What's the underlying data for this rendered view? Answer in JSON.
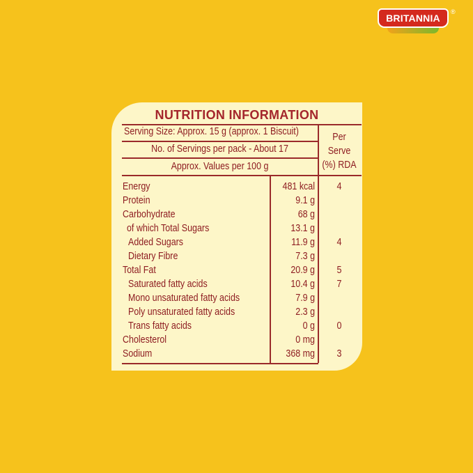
{
  "brand": {
    "name": "BRITANNIA",
    "reg": "®"
  },
  "nutrition": {
    "title": "NUTRITION INFORMATION",
    "serving_size": "Serving Size: Approx. 15 g (approx. 1 Biscuit)",
    "servings_per_pack": "No. of Servings per pack - About 17",
    "values_per": "Approx. Values per 100 g",
    "rda_header": [
      "Per",
      "Serve",
      "(%) RDA"
    ],
    "rows": [
      {
        "name": "Energy",
        "value": "481 kcal",
        "rda": "4",
        "indent": 0
      },
      {
        "name": "Protein",
        "value": "9.1 g",
        "rda": "",
        "indent": 0
      },
      {
        "name": "Carbohydrate",
        "value": "68 g",
        "rda": "",
        "indent": 0
      },
      {
        "name": "of which Total Sugars",
        "value": "13.1 g",
        "rda": "",
        "indent": 1
      },
      {
        "name": "Added Sugars",
        "value": "11.9 g",
        "rda": "4",
        "indent": 2
      },
      {
        "name": "Dietary Fibre",
        "value": "7.3 g",
        "rda": "",
        "indent": 2
      },
      {
        "name": "Total Fat",
        "value": "20.9 g",
        "rda": "5",
        "indent": 0
      },
      {
        "name": "Saturated fatty acids",
        "value": "10.4 g",
        "rda": "7",
        "indent": 2
      },
      {
        "name": "Mono unsaturated fatty acids",
        "value": "7.9 g",
        "rda": "",
        "indent": 2
      },
      {
        "name": "Poly unsaturated fatty acids",
        "value": "2.3 g",
        "rda": "",
        "indent": 2
      },
      {
        "name": "Trans fatty acids",
        "value": "0 g",
        "rda": "0",
        "indent": 2
      },
      {
        "name": "Cholesterol",
        "value": "0 mg",
        "rda": "",
        "indent": 0
      },
      {
        "name": "Sodium",
        "value": "368 mg",
        "rda": "3",
        "indent": 0
      }
    ]
  },
  "colors": {
    "background": "#F6C21C",
    "panel": "#FDF6C8",
    "text": "#8E1D22",
    "brand_red": "#D42A1E"
  }
}
